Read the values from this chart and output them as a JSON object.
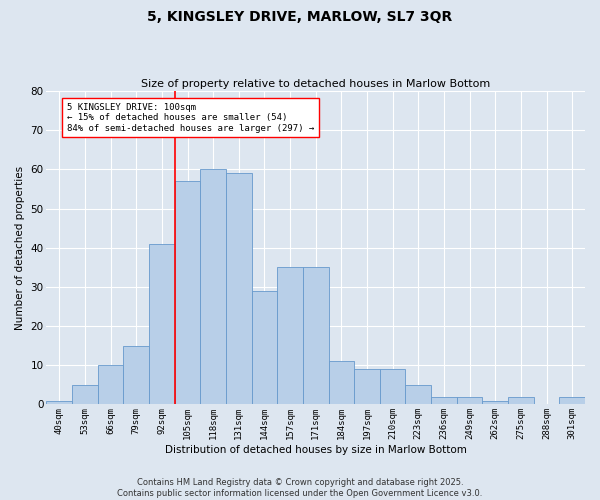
{
  "title": "5, KINGSLEY DRIVE, MARLOW, SL7 3QR",
  "subtitle": "Size of property relative to detached houses in Marlow Bottom",
  "xlabel": "Distribution of detached houses by size in Marlow Bottom",
  "ylabel": "Number of detached properties",
  "categories": [
    "40sqm",
    "53sqm",
    "66sqm",
    "79sqm",
    "92sqm",
    "105sqm",
    "118sqm",
    "131sqm",
    "144sqm",
    "157sqm",
    "171sqm",
    "184sqm",
    "197sqm",
    "210sqm",
    "223sqm",
    "236sqm",
    "249sqm",
    "262sqm",
    "275sqm",
    "288sqm",
    "301sqm"
  ],
  "values": [
    1,
    5,
    10,
    15,
    41,
    57,
    60,
    59,
    29,
    35,
    35,
    11,
    9,
    9,
    5,
    2,
    2,
    1,
    2,
    0,
    2
  ],
  "bar_color": "#b8cfe8",
  "bar_edge_color": "#6699cc",
  "vline_x_index": 4.5,
  "vline_color": "red",
  "annotation_text": "5 KINGSLEY DRIVE: 100sqm\n← 15% of detached houses are smaller (54)\n84% of semi-detached houses are larger (297) →",
  "annotation_box_color": "white",
  "annotation_box_edge_color": "red",
  "ylim": [
    0,
    80
  ],
  "yticks": [
    0,
    10,
    20,
    30,
    40,
    50,
    60,
    70,
    80
  ],
  "background_color": "#dde6f0",
  "grid_color": "white",
  "footer": "Contains HM Land Registry data © Crown copyright and database right 2025.\nContains public sector information licensed under the Open Government Licence v3.0."
}
